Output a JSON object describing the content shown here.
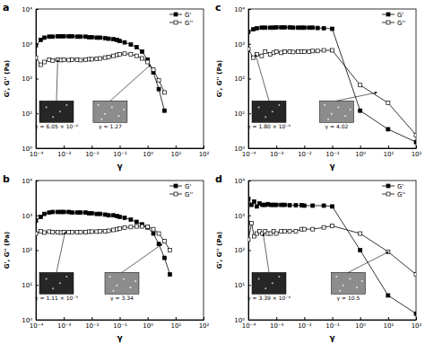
{
  "chart_data": [
    {
      "type": "line",
      "title": "a",
      "xlabel": "γ",
      "ylabel": "G', G'' (Pa)",
      "log": true,
      "grid": false,
      "legend": "upper right",
      "xlim": [
        0.0001,
        100
      ],
      "ylim": [
        1,
        10000
      ],
      "xticks": [
        {
          "value": 0.0001,
          "label": "10⁻⁴"
        },
        {
          "value": 0.001,
          "label": "10⁻³"
        },
        {
          "value": 0.01,
          "label": "10⁻²"
        },
        {
          "value": 0.1,
          "label": "10⁻¹"
        },
        {
          "value": 1,
          "label": "10⁰"
        },
        {
          "value": 10,
          "label": "10¹"
        },
        {
          "value": 100,
          "label": "10²"
        }
      ],
      "yticks": [
        {
          "value": 1,
          "label": "10⁰"
        },
        {
          "value": 10,
          "label": "10¹"
        },
        {
          "value": 100,
          "label": "10²"
        },
        {
          "value": 1000,
          "label": "10³"
        },
        {
          "value": 10000,
          "label": "10⁴"
        }
      ],
      "x": [
        0.0001,
        0.00015,
        0.0002,
        0.0003,
        0.0004,
        0.0006,
        0.0008,
        0.001,
        0.0015,
        0.002,
        0.003,
        0.004,
        0.006,
        0.008,
        0.01,
        0.015,
        0.02,
        0.03,
        0.04,
        0.06,
        0.08,
        0.1,
        0.15,
        0.25,
        0.4,
        0.63,
        1,
        1.6,
        2.5,
        4
      ],
      "series": [
        {
          "name": "G'",
          "color": "#000000",
          "marker": "square",
          "line_style": "solid",
          "values": [
            900,
            1300,
            1500,
            1600,
            1600,
            1650,
            1650,
            1650,
            1650,
            1650,
            1600,
            1600,
            1600,
            1550,
            1550,
            1500,
            1500,
            1450,
            1400,
            1350,
            1300,
            1200,
            1100,
            950,
            800,
            600,
            350,
            150,
            50,
            12
          ]
        },
        {
          "name": "G''",
          "color": "#000000",
          "marker": "square-open",
          "line_style": "solid",
          "values": [
            400,
            250,
            300,
            350,
            330,
            350,
            340,
            350,
            340,
            350,
            350,
            340,
            350,
            360,
            360,
            370,
            380,
            400,
            420,
            450,
            480,
            500,
            520,
            500,
            450,
            380,
            300,
            180,
            90,
            40
          ]
        }
      ],
      "annotations": [
        {
          "text": "γ = 6.05 × 10⁻⁴",
          "x": 0.000605,
          "y": 350
        },
        {
          "text": "γ = 1.27",
          "x": 1.27,
          "y": 250
        }
      ]
    },
    {
      "type": "line",
      "title": "b",
      "xlabel": "γ",
      "ylabel": "G', G'' (Pa)",
      "log": true,
      "grid": false,
      "legend": "upper right",
      "xlim": [
        0.0001,
        100
      ],
      "ylim": [
        1,
        10000
      ],
      "xticks": [
        {
          "value": 0.0001,
          "label": "10⁻⁴"
        },
        {
          "value": 0.001,
          "label": "10⁻³"
        },
        {
          "value": 0.01,
          "label": "10⁻²"
        },
        {
          "value": 0.1,
          "label": "10⁻¹"
        },
        {
          "value": 1,
          "label": "10⁰"
        },
        {
          "value": 10,
          "label": "10¹"
        },
        {
          "value": 100,
          "label": "10²"
        }
      ],
      "yticks": [
        {
          "value": 1,
          "label": "10⁰"
        },
        {
          "value": 10,
          "label": "10¹"
        },
        {
          "value": 100,
          "label": "10²"
        },
        {
          "value": 1000,
          "label": "10³"
        },
        {
          "value": 10000,
          "label": "10⁴"
        }
      ],
      "x": [
        0.0001,
        0.00015,
        0.0002,
        0.0003,
        0.0004,
        0.0006,
        0.0008,
        0.001,
        0.0015,
        0.002,
        0.003,
        0.004,
        0.006,
        0.008,
        0.01,
        0.015,
        0.02,
        0.03,
        0.04,
        0.06,
        0.08,
        0.1,
        0.15,
        0.25,
        0.4,
        0.63,
        1,
        1.6,
        2.5,
        4,
        6.3
      ],
      "series": [
        {
          "name": "G'",
          "color": "#000000",
          "marker": "square",
          "line_style": "solid",
          "values": [
            700,
            900,
            1100,
            1200,
            1250,
            1250,
            1250,
            1250,
            1250,
            1200,
            1200,
            1200,
            1200,
            1150,
            1150,
            1100,
            1100,
            1050,
            1000,
            1000,
            950,
            900,
            850,
            750,
            650,
            550,
            450,
            300,
            150,
            60,
            20
          ]
        },
        {
          "name": "G''",
          "color": "#000000",
          "marker": "square-open",
          "line_style": "solid",
          "values": [
            300,
            350,
            320,
            340,
            330,
            330,
            320,
            330,
            330,
            330,
            330,
            330,
            330,
            340,
            340,
            340,
            350,
            350,
            360,
            380,
            400,
            420,
            440,
            460,
            480,
            480,
            470,
            400,
            300,
            180,
            100
          ]
        }
      ],
      "annotations": [
        {
          "text": "γ = 1.11 × 10⁻³",
          "x": 0.00111,
          "y": 330
        },
        {
          "text": "γ = 3.34",
          "x": 3.34,
          "y": 150
        }
      ]
    },
    {
      "type": "line",
      "title": "c",
      "xlabel": "γ",
      "ylabel": "G', G'' (Pa)",
      "log": true,
      "grid": false,
      "legend": "upper right",
      "xlim": [
        0.0001,
        100
      ],
      "ylim": [
        1,
        10000
      ],
      "xticks": [
        {
          "value": 0.0001,
          "label": "10⁻⁴"
        },
        {
          "value": 0.001,
          "label": "10⁻³"
        },
        {
          "value": 0.01,
          "label": "10⁻²"
        },
        {
          "value": 0.1,
          "label": "10⁻¹"
        },
        {
          "value": 1,
          "label": "10⁰"
        },
        {
          "value": 10,
          "label": "10¹"
        },
        {
          "value": 100,
          "label": "10²"
        }
      ],
      "yticks": [
        {
          "value": 1,
          "label": "10⁰"
        },
        {
          "value": 10,
          "label": "10¹"
        },
        {
          "value": 100,
          "label": "10²"
        },
        {
          "value": 1000,
          "label": "10³"
        },
        {
          "value": 10000,
          "label": "10⁴"
        }
      ],
      "x": [
        0.0001,
        0.00015,
        0.0002,
        0.0003,
        0.0004,
        0.0006,
        0.0008,
        0.001,
        0.0015,
        0.002,
        0.003,
        0.004,
        0.006,
        0.008,
        0.01,
        0.015,
        0.02,
        0.03,
        0.05,
        0.1,
        1,
        10,
        100
      ],
      "series": [
        {
          "name": "G'",
          "color": "#000000",
          "marker": "square",
          "line_style": "solid",
          "values": [
            2200,
            2600,
            2800,
            2900,
            2900,
            2900,
            2900,
            2950,
            2950,
            2950,
            2950,
            2900,
            2900,
            2900,
            2900,
            2900,
            2900,
            2850,
            2800,
            2700,
            12,
            3.5,
            1.5
          ]
        },
        {
          "name": "G''",
          "color": "#000000",
          "marker": "square-open",
          "line_style": "solid",
          "values": [
            700,
            400,
            500,
            450,
            600,
            500,
            550,
            600,
            550,
            600,
            600,
            580,
            600,
            600,
            600,
            600,
            620,
            620,
            650,
            650,
            65,
            20,
            2.4
          ]
        }
      ],
      "annotations": [
        {
          "text": "γ = 1.80 × 10⁻⁴",
          "x": 0.00018,
          "y": 500
        },
        {
          "text": "γ = 4.02",
          "x": 4.02,
          "y": 40
        }
      ]
    },
    {
      "type": "line",
      "title": "d",
      "xlabel": "γ",
      "ylabel": "G', G'' (Pa)",
      "log": true,
      "grid": false,
      "legend": "upper right",
      "xlim": [
        0.0001,
        100
      ],
      "ylim": [
        1,
        10000
      ],
      "xticks": [
        {
          "value": 0.0001,
          "label": "10⁻⁴"
        },
        {
          "value": 0.001,
          "label": "10⁻³"
        },
        {
          "value": 0.01,
          "label": "10⁻²"
        },
        {
          "value": 0.1,
          "label": "10⁻¹"
        },
        {
          "value": 1,
          "label": "10⁰"
        },
        {
          "value": 10,
          "label": "10¹"
        },
        {
          "value": 100,
          "label": "10²"
        }
      ],
      "yticks": [
        {
          "value": 1,
          "label": "10⁰"
        },
        {
          "value": 10,
          "label": "10¹"
        },
        {
          "value": 100,
          "label": "10²"
        },
        {
          "value": 1000,
          "label": "10³"
        },
        {
          "value": 10000,
          "label": "10⁴"
        }
      ],
      "x": [
        0.0001,
        0.00013,
        0.00016,
        0.0002,
        0.00025,
        0.00032,
        0.0004,
        0.0005,
        0.00063,
        0.0008,
        0.001,
        0.0015,
        0.002,
        0.003,
        0.005,
        0.008,
        0.01,
        0.02,
        0.05,
        0.1,
        1,
        10,
        100
      ],
      "series": [
        {
          "name": "G'",
          "color": "#000000",
          "marker": "square",
          "line_style": "solid",
          "values": [
            3000,
            2000,
            2500,
            1800,
            2200,
            2000,
            2000,
            2100,
            2000,
            2000,
            2000,
            2000,
            2000,
            1950,
            1950,
            1950,
            1900,
            1900,
            1900,
            1800,
            100,
            5,
            1.5
          ]
        },
        {
          "name": "G''",
          "color": "#000000",
          "marker": "square-open",
          "line_style": "solid",
          "values": [
            200,
            600,
            250,
            300,
            350,
            300,
            350,
            300,
            300,
            350,
            300,
            350,
            350,
            350,
            350,
            400,
            400,
            400,
            450,
            500,
            300,
            90,
            20
          ]
        }
      ],
      "annotations": [
        {
          "text": "γ = 3.39 × 10⁻⁴",
          "x": 0.000339,
          "y": 300
        },
        {
          "text": "γ = 10.5",
          "x": 10.5,
          "y": 90
        }
      ]
    }
  ]
}
